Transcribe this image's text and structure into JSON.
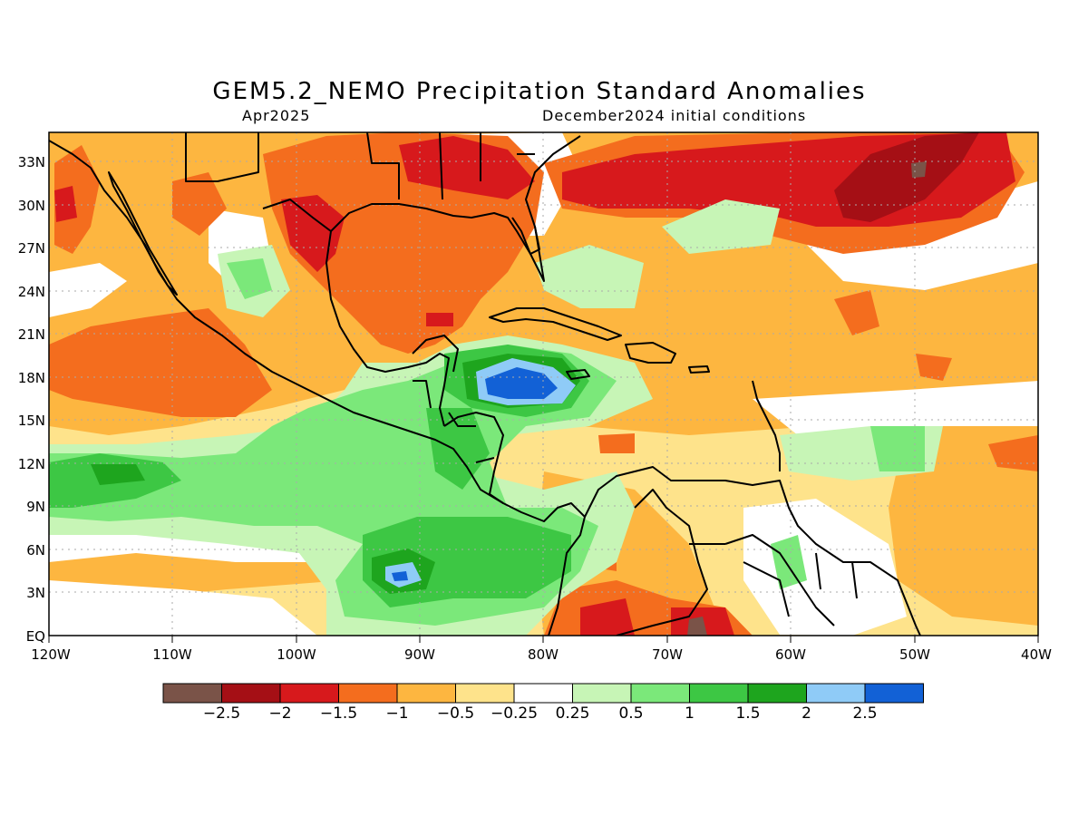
{
  "title": "GEM5.2_NEMO Precipitation Standard Anomalies",
  "subtitle_left": "Apr2025",
  "subtitle_right": "December2024 initial conditions",
  "lat_labels": [
    "33N",
    "30N",
    "27N",
    "24N",
    "21N",
    "18N",
    "15N",
    "12N",
    "9N",
    "6N",
    "3N",
    "EQ"
  ],
  "lon_labels": [
    "120W",
    "110W",
    "100W",
    "90W",
    "80W",
    "70W",
    "60W",
    "50W",
    "40W"
  ],
  "colorbar": {
    "colors": [
      "#7a5348",
      "#a50f15",
      "#d7191c",
      "#f46d1e",
      "#fdb640",
      "#fee38b",
      "#ffffff",
      "#c7f5b6",
      "#7be87a",
      "#3dc744",
      "#1ea51e",
      "#8fcbf7",
      "#1261d6"
    ],
    "labels": [
      "−2.5",
      "−2",
      "−1.5",
      "−1",
      "−0.5",
      "−0.25",
      "0.25",
      "0.5",
      "1",
      "1.5",
      "2",
      "2.5"
    ]
  },
  "map_colors": {
    "background": "#fee38b",
    "orange": "#fdb640",
    "deep_orange": "#f46d1e",
    "red": "#d7191c",
    "dark_red": "#a50f15",
    "brown": "#7a5348",
    "white": "#ffffff",
    "light_green": "#c7f5b6",
    "green": "#7be87a",
    "mid_green": "#3dc744",
    "dark_green": "#1ea51e",
    "light_blue": "#8fcbf7",
    "blue": "#1261d6"
  }
}
